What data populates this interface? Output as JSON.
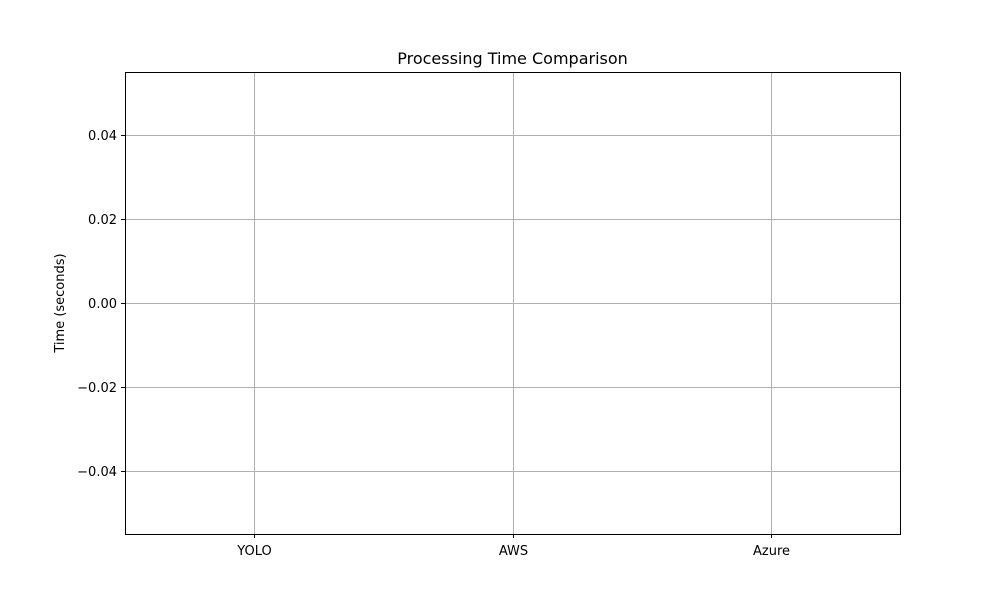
{
  "chart_data": {
    "type": "bar",
    "title": "Processing Time Comparison",
    "xlabel": "",
    "ylabel": "Time (seconds)",
    "categories": [
      "YOLO",
      "AWS",
      "Azure"
    ],
    "values": [
      0,
      0,
      0
    ],
    "ylim": [
      -0.055,
      0.055
    ],
    "yticks": [
      -0.04,
      -0.02,
      0.0,
      0.02,
      0.04
    ],
    "ytick_labels": [
      "−0.04",
      "−0.02",
      "0.00",
      "0.02",
      "0.04"
    ],
    "grid": true,
    "legend": "none",
    "colors": {
      "grid": "#b0b0b0",
      "axes": "#000000",
      "bar": "#1f77b4"
    }
  }
}
